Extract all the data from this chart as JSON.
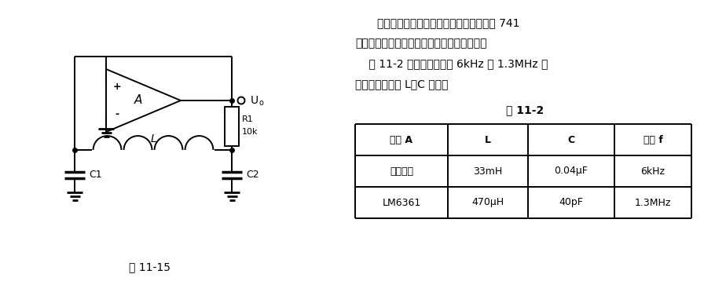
{
  "fig_width": 8.96,
  "fig_height": 3.63,
  "dpi": 100,
  "bg_color": "#ffffff",
  "text_color": "#000000",
  "figure_label": "图 11-15",
  "table_title": "表 11-2",
  "paragraph1": "当工作频率较低时，可以用任何运放。如 741",
  "paragraph2": "之类，但工作频率较高时，应选用高速运放。",
  "paragraph3": "    表 11-2 中给出了频率为 6kHz 和 1.3MHz 时",
  "paragraph4": "对运放的选用和 L、C 之值。",
  "table_headers": [
    "运放 A",
    "L",
    "C",
    "频率 f"
  ],
  "table_row1": [
    "任何品种",
    "33mH",
    "0.04μF",
    "6kHz"
  ],
  "table_row2": [
    "LM6361",
    "470μH",
    "40pF",
    "1.3MHz"
  ],
  "label_R1": "R1",
  "label_R1_val": "10k",
  "label_L": "L",
  "label_C1": "C1",
  "label_C2": "C2",
  "label_A": "A",
  "label_Uo": "U",
  "label_plus": "+",
  "label_minus": "-"
}
